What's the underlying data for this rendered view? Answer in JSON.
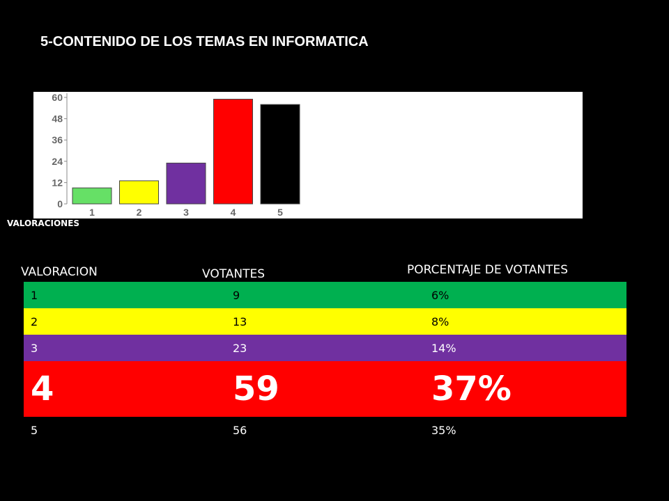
{
  "title": "5-CONTENIDO DE LOS TEMAS EN INFORMATICA",
  "chart_caption": "VALORACIONES",
  "colors": {
    "background": "#000000",
    "green": "#00b050",
    "yellow": "#ffff00",
    "purple": "#7030a0",
    "red": "#ff0000"
  },
  "chart_data": {
    "type": "bar",
    "categories": [
      "1",
      "2",
      "3",
      "4",
      "5"
    ],
    "values": [
      9,
      13,
      23,
      59,
      56
    ],
    "colors": [
      "#66e066",
      "#ffff00",
      "#7030a0",
      "#ff0000",
      "#000000"
    ],
    "yticks": [
      0,
      12,
      24,
      36,
      48,
      60
    ],
    "ylim": [
      0,
      60
    ],
    "xlabel": "VALORACIONES",
    "ylabel": "",
    "grid": false
  },
  "table": {
    "headers": [
      "VALORACION",
      "VOTANTES",
      "PORCENTAJE DE  VOTANTES"
    ],
    "rows": [
      {
        "valoracion": "1",
        "votantes": "9",
        "porcentaje": "6%",
        "bg": "#00b050",
        "fg": "#000000",
        "size": "small"
      },
      {
        "valoracion": "2",
        "votantes": "13",
        "porcentaje": "8%",
        "bg": "#ffff00",
        "fg": "#000000",
        "size": "small"
      },
      {
        "valoracion": "3",
        "votantes": "23",
        "porcentaje": "14%",
        "bg": "#7030a0",
        "fg": "#ffffff",
        "size": "small"
      },
      {
        "valoracion": "4",
        "votantes": "59",
        "porcentaje": "37%",
        "bg": "#ff0000",
        "fg": "#ffffff",
        "size": "big"
      },
      {
        "valoracion": "5",
        "votantes": "56",
        "porcentaje": "35%",
        "bg": "#000000",
        "fg": "#ffffff",
        "size": "small"
      }
    ]
  }
}
